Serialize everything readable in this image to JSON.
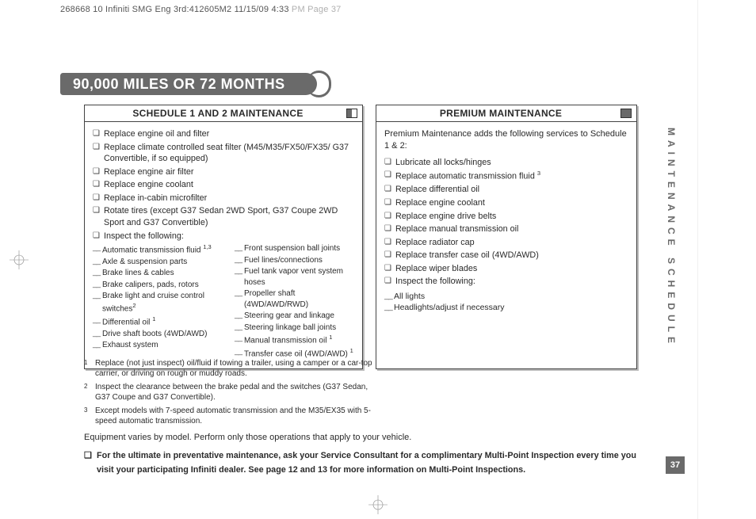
{
  "crop_line": {
    "text_a": "268668 10 Infiniti SMG Eng 3rd:412605M2  11/15/09  4:33 ",
    "text_b": "PM  Page 37"
  },
  "title": "90,000 MILES OR 72 MONTHS",
  "schedule12": {
    "head": "SCHEDULE 1 AND 2 MAINTENANCE",
    "items": [
      "Replace engine oil and filter",
      "Replace climate controlled seat filter (M45/M35/FX50/FX35/ G37 Convertible, if so equipped)",
      "Replace engine air filter",
      "Replace engine coolant",
      "Replace in-cabin microfilter",
      "Rotate tires (except G37 Sedan 2WD Sport, G37 Coupe 2WD Sport and G37 Convertible)",
      "Inspect the following:"
    ],
    "inspect_left": [
      "Automatic transmission fluid <sup>1,3</sup>",
      "Axle & suspension parts",
      "Brake lines & cables",
      "Brake calipers, pads, rotors",
      "Brake light and cruise control switches<sup>2</sup>",
      "Differential oil <sup>1</sup>",
      "Drive shaft boots (4WD/AWD)",
      "Exhaust system"
    ],
    "inspect_right": [
      "Front suspension ball joints",
      "Fuel lines/connections",
      "Fuel tank vapor vent system hoses",
      "Propeller shaft (4WD/AWD/RWD)",
      "Steering gear and linkage",
      "Steering linkage ball joints",
      "Manual transmission oil <sup>1</sup>",
      "Transfer case oil (4WD/AWD) <sup>1</sup>"
    ]
  },
  "premium": {
    "head": "PREMIUM MAINTENANCE",
    "preamble": "Premium Maintenance adds the following services to Schedule 1 & 2:",
    "items": [
      "Lubricate all locks/hinges",
      "Replace automatic transmission fluid <sup>3</sup>",
      "Replace differential oil",
      "Replace engine coolant",
      "Replace engine drive belts",
      "Replace manual transmission oil",
      "Replace radiator cap",
      "Replace transfer case oil (4WD/AWD)",
      "Replace wiper blades",
      "Inspect the following:"
    ],
    "inspect": [
      "All lights",
      "Headlights/adjust if necessary"
    ]
  },
  "footnotes": [
    {
      "num": "1",
      "text": "Replace (not just inspect) oil/fluid if towing a trailer, using a camper or a car-top carrier, or driving on rough or muddy roads."
    },
    {
      "num": "2",
      "text": "Inspect the clearance between the brake pedal and the switches (G37 Sedan, G37 Coupe and G37 Convertible)."
    },
    {
      "num": "3",
      "text": "Except models with 7-speed automatic transmission and the M35/EX35 with 5-speed automatic transmission."
    }
  ],
  "equip_note": "Equipment varies by model. Perform only those operations that apply to your vehicle.",
  "ultimate": "For the ultimate in preventative maintenance, ask your Service Consultant for a complimentary Multi-Point Inspection every time you visit your participating Infiniti dealer. See page 12 and 13 for more information on Multi-Point Inspections.",
  "side_tab": "MAINTENANCE SCHEDULE",
  "page_number": "37"
}
